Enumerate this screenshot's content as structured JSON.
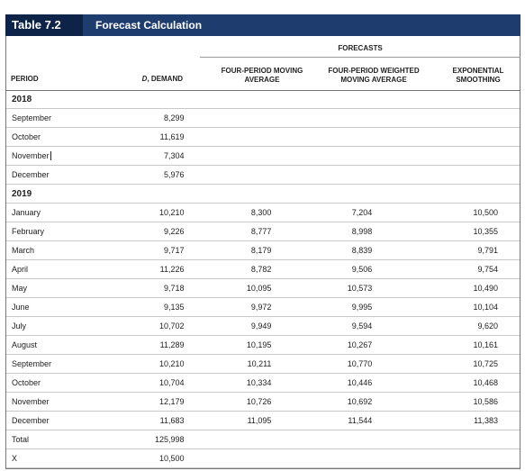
{
  "header": {
    "table_label": "Table 7.2",
    "title": "Forecast Calculation"
  },
  "group_header": "FORECASTS",
  "columns": {
    "period": "PERIOD",
    "demand_d": "D",
    "demand_suffix": ", DEMAND",
    "moving_avg": [
      "FOUR-PERIOD MOVING",
      "AVERAGE"
    ],
    "weighted_avg": [
      "FOUR-PERIOD WEIGHTED",
      "MOVING AVERAGE"
    ],
    "exp_smoothing": [
      "EXPONENTIAL",
      "SMOOTHING"
    ]
  },
  "rows": [
    {
      "type": "year",
      "period": "2018"
    },
    {
      "period": "September",
      "demand": "8,299",
      "ma": "",
      "wma": "",
      "es": ""
    },
    {
      "period": "October",
      "demand": "11,619",
      "ma": "",
      "wma": "",
      "es": ""
    },
    {
      "period": "November",
      "demand": "7,304",
      "ma": "",
      "wma": "",
      "es": "",
      "caret": true
    },
    {
      "period": "December",
      "demand": "5,976",
      "ma": "",
      "wma": "",
      "es": ""
    },
    {
      "type": "year",
      "period": "2019"
    },
    {
      "period": "January",
      "demand": "10,210",
      "ma": "8,300",
      "wma": "7,204",
      "es": "10,500"
    },
    {
      "period": "February",
      "demand": "9,226",
      "ma": "8,777",
      "wma": "8,998",
      "es": "10,355"
    },
    {
      "period": "March",
      "demand": "9,717",
      "ma": "8,179",
      "wma": "8,839",
      "es": "9,791"
    },
    {
      "period": "April",
      "demand": "11,226",
      "ma": "8,782",
      "wma": "9,506",
      "es": "9,754"
    },
    {
      "period": "May",
      "demand": "9,718",
      "ma": "10,095",
      "wma": "10,573",
      "es": "10,490"
    },
    {
      "period": "June",
      "demand": "9,135",
      "ma": "9,972",
      "wma": "9,995",
      "es": "10,104"
    },
    {
      "period": "July",
      "demand": "10,702",
      "ma": "9,949",
      "wma": "9,594",
      "es": "9,620"
    },
    {
      "period": "August",
      "demand": "11,289",
      "ma": "10,195",
      "wma": "10,267",
      "es": "10,161"
    },
    {
      "period": "September",
      "demand": "10,210",
      "ma": "10,211",
      "wma": "10,770",
      "es": "10,725"
    },
    {
      "period": "October",
      "demand": "10,704",
      "ma": "10,334",
      "wma": "10,446",
      "es": "10,468"
    },
    {
      "period": "November",
      "demand": "12,179",
      "ma": "10,726",
      "wma": "10,692",
      "es": "10,586"
    },
    {
      "period": "December",
      "demand": "11,683",
      "ma": "11,095",
      "wma": "11,544",
      "es": "11,383"
    },
    {
      "period": "Total",
      "demand": "125,998",
      "ma": "",
      "wma": "",
      "es": ""
    },
    {
      "period": "X",
      "demand": "10,500",
      "ma": "",
      "wma": "",
      "es": ""
    }
  ]
}
